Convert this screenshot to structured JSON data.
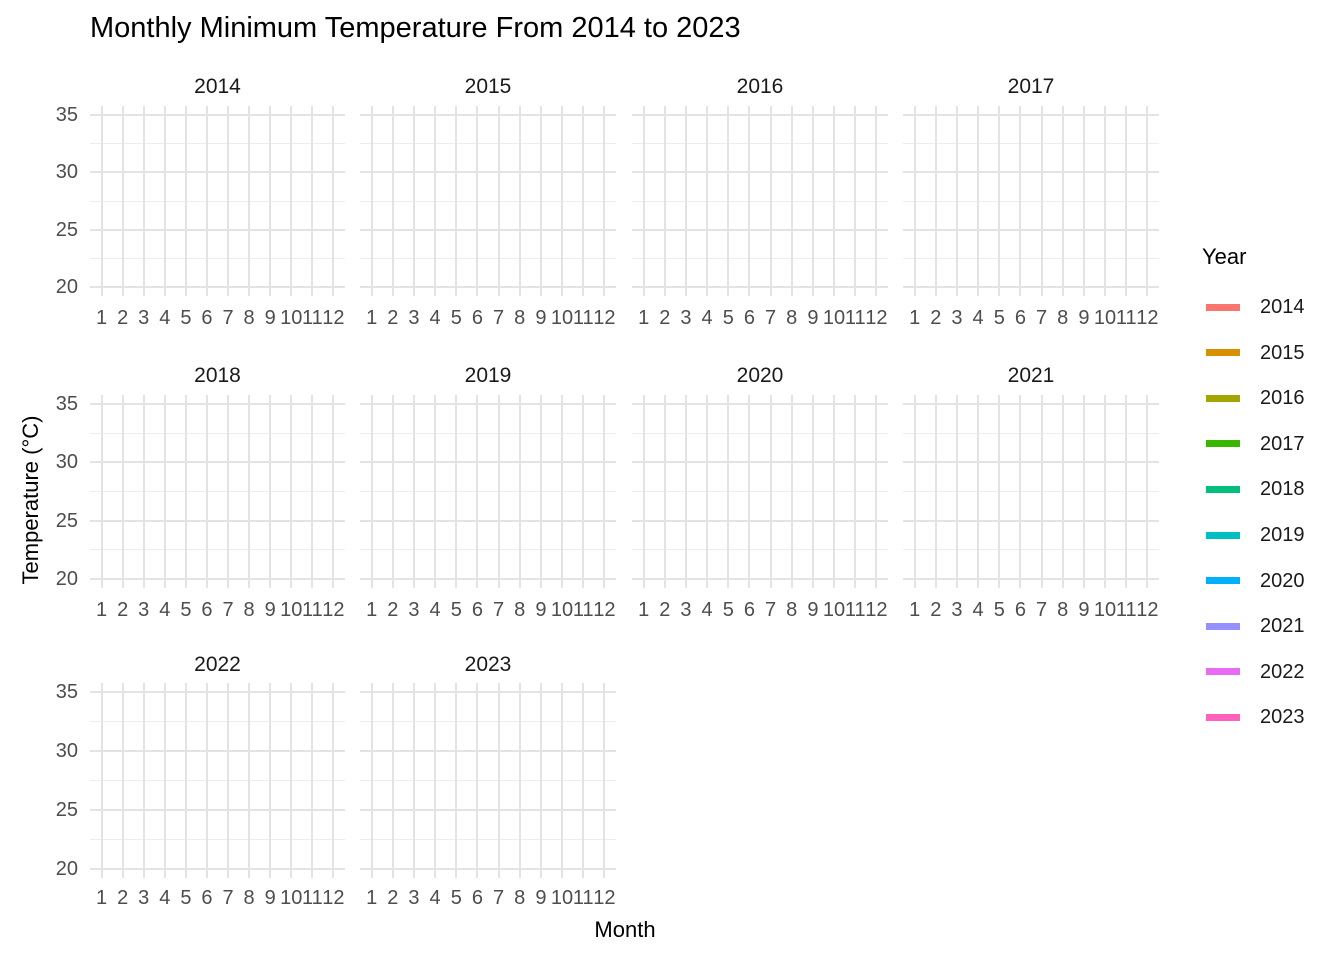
{
  "title": "Monthly Minimum Temperature From 2014 to 2023",
  "x_axis_title": "Month",
  "y_axis_title": "Temperature (°C)",
  "legend": {
    "title": "Year"
  },
  "facets": [
    "2014",
    "2015",
    "2016",
    "2017",
    "2018",
    "2019",
    "2020",
    "2021",
    "2022",
    "2023"
  ],
  "x_tick_labels": [
    "1",
    "2",
    "3",
    "4",
    "5",
    "6",
    "7",
    "8",
    "9",
    "10",
    "11",
    "12"
  ],
  "y_tick_labels": [
    "35",
    "30",
    "25",
    "20"
  ],
  "colors": {
    "grid_major": "#e3e3e3",
    "grid_minor": "#ededed",
    "axis_text": "#4d4d4d",
    "strip_text": "#1a1a1a",
    "title_text": "#000000"
  },
  "chart_data": {
    "type": "line",
    "title": "Monthly Minimum Temperature From 2014 to 2023",
    "xlabel": "Month",
    "ylabel": "Temperature (°C)",
    "facet_variable": "Year",
    "facets": [
      "2014",
      "2015",
      "2016",
      "2017",
      "2018",
      "2019",
      "2020",
      "2021",
      "2022",
      "2023"
    ],
    "facet_layout": {
      "ncol": 4,
      "nrow": 3
    },
    "x_ticks": [
      1,
      2,
      3,
      4,
      5,
      6,
      7,
      8,
      9,
      10,
      11,
      12
    ],
    "y_ticks": [
      20,
      25,
      30,
      35
    ],
    "y_minor_ticks": [
      22.5,
      27.5,
      32.5
    ],
    "xlim": [
      0.45,
      12.55
    ],
    "ylim": [
      19.25,
      35.75
    ],
    "grid": true,
    "legend_position": "right",
    "panels_empty": true,
    "series": [
      {
        "name": "2014",
        "color": "#F8766D",
        "values": []
      },
      {
        "name": "2015",
        "color": "#D89000",
        "values": []
      },
      {
        "name": "2016",
        "color": "#A3A500",
        "values": []
      },
      {
        "name": "2017",
        "color": "#39B600",
        "values": []
      },
      {
        "name": "2018",
        "color": "#00BF7D",
        "values": []
      },
      {
        "name": "2019",
        "color": "#00BFC4",
        "values": []
      },
      {
        "name": "2020",
        "color": "#00B0F6",
        "values": []
      },
      {
        "name": "2021",
        "color": "#9590FF",
        "values": []
      },
      {
        "name": "2022",
        "color": "#E76BF3",
        "values": []
      },
      {
        "name": "2023",
        "color": "#FF62BC",
        "values": []
      }
    ]
  }
}
